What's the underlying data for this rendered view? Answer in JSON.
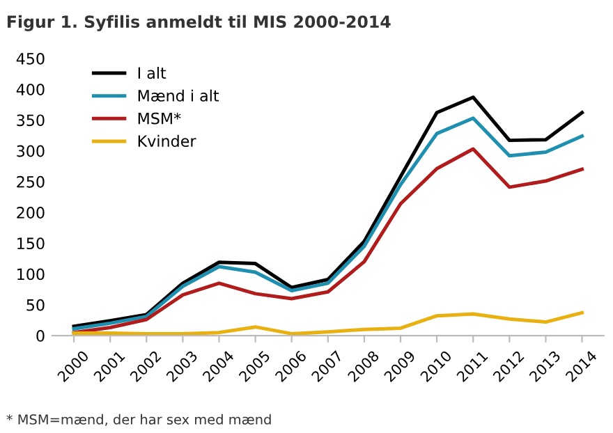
{
  "chart_data": {
    "type": "line",
    "title": "Figur 1. Syfilis anmeldt til MIS 2000-2014",
    "categories": [
      "2000",
      "2001",
      "2002",
      "2003",
      "2004",
      "2005",
      "2006",
      "2007",
      "2008",
      "2009",
      "2010",
      "2011",
      "2012",
      "2013",
      "2014"
    ],
    "series": [
      {
        "name": "I alt",
        "color": "#000000",
        "values": [
          15,
          24,
          34,
          85,
          119,
          117,
          78,
          91,
          153,
          258,
          362,
          387,
          317,
          318,
          362
        ]
      },
      {
        "name": "Mænd i alt",
        "color": "#1f8fb0",
        "values": [
          11,
          20,
          31,
          80,
          112,
          103,
          73,
          85,
          145,
          245,
          328,
          353,
          292,
          298,
          324
        ]
      },
      {
        "name": "MSM*",
        "color": "#b01c1c",
        "values": [
          5,
          13,
          26,
          66,
          85,
          68,
          60,
          71,
          120,
          214,
          271,
          303,
          241,
          251,
          270
        ]
      },
      {
        "name": "Kvinder",
        "color": "#e8b010",
        "values": [
          4,
          4,
          3,
          3,
          5,
          14,
          3,
          6,
          10,
          12,
          32,
          35,
          27,
          22,
          37
        ]
      }
    ],
    "ylim": [
      0,
      450
    ],
    "yticks": [
      0,
      50,
      100,
      150,
      200,
      250,
      300,
      350,
      400,
      450
    ],
    "grid": false,
    "legend": "top left",
    "marker": "none",
    "line_style": "solid",
    "annotations": [
      "* MSM=mænd, der har sex med mænd"
    ]
  }
}
